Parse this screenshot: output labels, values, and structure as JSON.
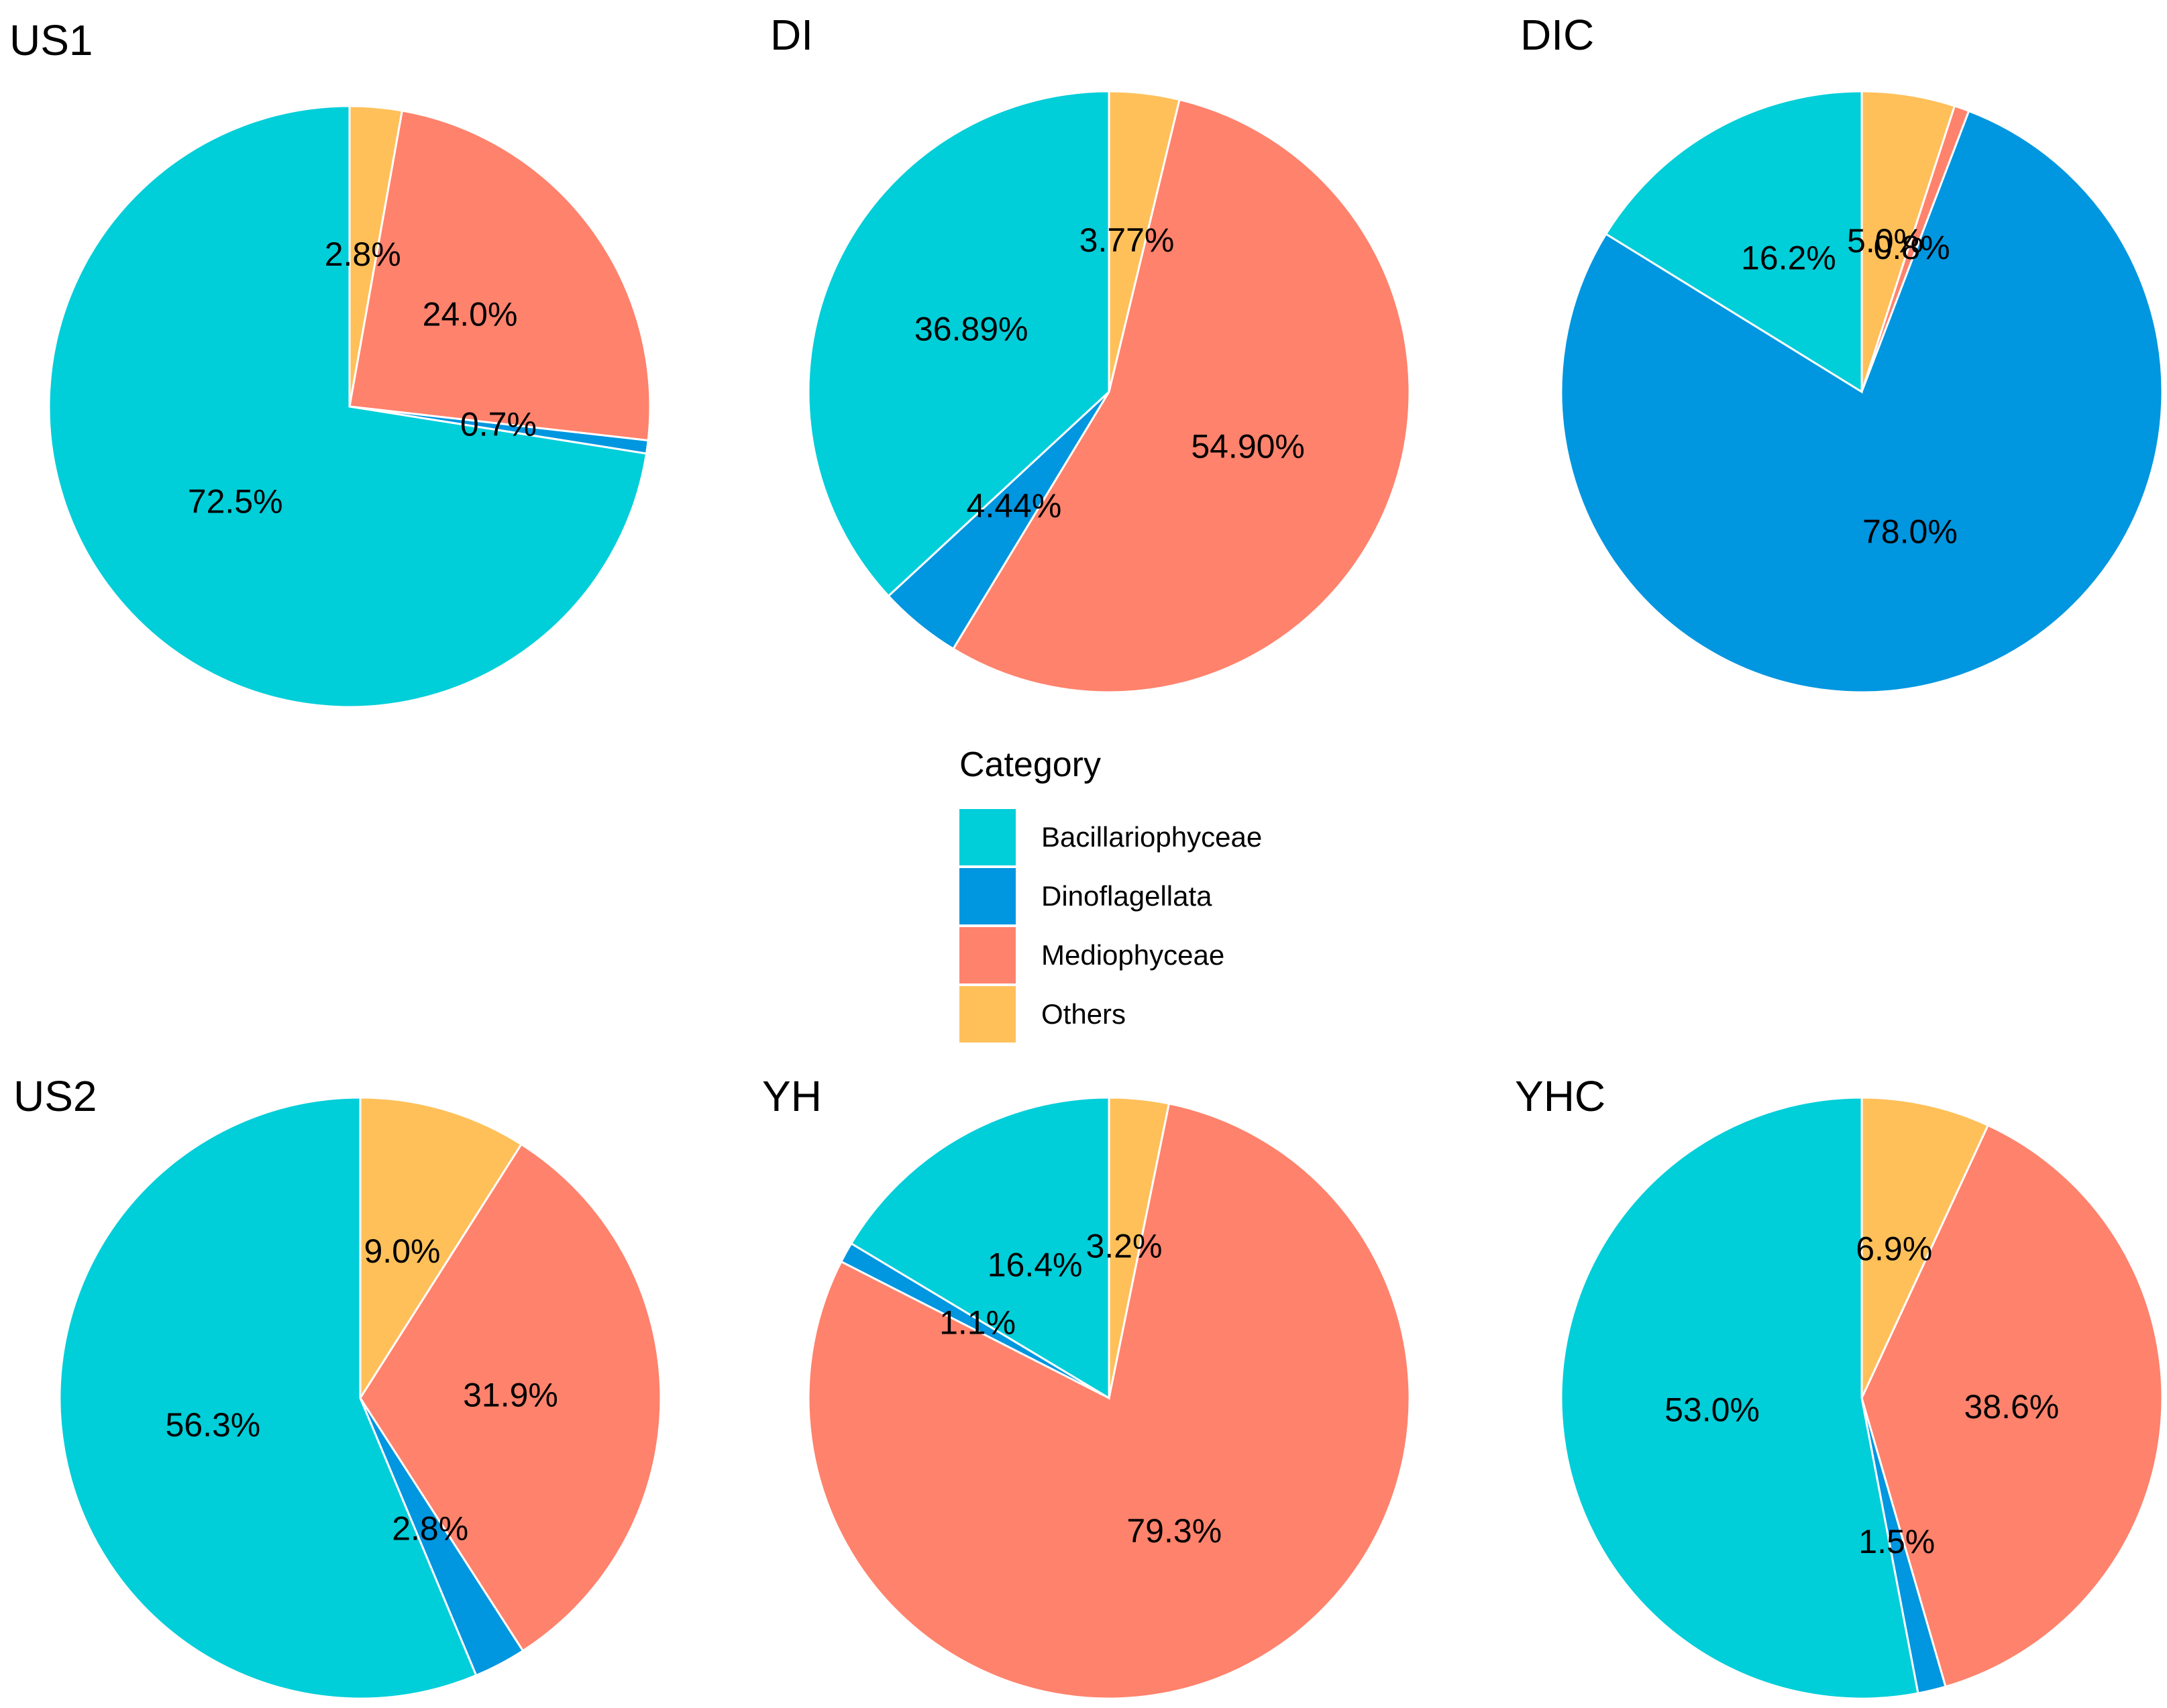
{
  "figure": {
    "legend_title": "Category",
    "categories": [
      {
        "name": "Bacillariophyceae",
        "color": "#00CED9"
      },
      {
        "name": "Dinoflagellata",
        "color": "#0096E0"
      },
      {
        "name": "Mediophyceae",
        "color": "#FF826C"
      },
      {
        "name": "Others",
        "color": "#FFC05A"
      }
    ]
  },
  "chart_data": [
    {
      "type": "pie",
      "title": "US1",
      "slices": [
        {
          "category": "Others",
          "value": 2.8,
          "label": "2.8%"
        },
        {
          "category": "Mediophyceae",
          "value": 24.0,
          "label": "24.0%"
        },
        {
          "category": "Dinoflagellata",
          "value": 0.7,
          "label": "0.7%"
        },
        {
          "category": "Bacillariophyceae",
          "value": 72.5,
          "label": "72.5%"
        }
      ]
    },
    {
      "type": "pie",
      "title": "DI",
      "slices": [
        {
          "category": "Others",
          "value": 3.77,
          "label": "3.77%"
        },
        {
          "category": "Mediophyceae",
          "value": 54.9,
          "label": "54.90%"
        },
        {
          "category": "Dinoflagellata",
          "value": 4.44,
          "label": "4.44%"
        },
        {
          "category": "Bacillariophyceae",
          "value": 36.89,
          "label": "36.89%"
        }
      ]
    },
    {
      "type": "pie",
      "title": "DIC",
      "slices": [
        {
          "category": "Others",
          "value": 5.0,
          "label": "5.0%"
        },
        {
          "category": "Mediophyceae",
          "value": 0.8,
          "label": "0.8%"
        },
        {
          "category": "Dinoflagellata",
          "value": 78.0,
          "label": "78.0%"
        },
        {
          "category": "Bacillariophyceae",
          "value": 16.2,
          "label": "16.2%"
        }
      ]
    },
    {
      "type": "pie",
      "title": "US2",
      "slices": [
        {
          "category": "Others",
          "value": 9.0,
          "label": "9.0%"
        },
        {
          "category": "Mediophyceae",
          "value": 31.9,
          "label": "31.9%"
        },
        {
          "category": "Dinoflagellata",
          "value": 2.8,
          "label": "2.8%"
        },
        {
          "category": "Bacillariophyceae",
          "value": 56.3,
          "label": "56.3%"
        }
      ]
    },
    {
      "type": "pie",
      "title": "YH",
      "slices": [
        {
          "category": "Others",
          "value": 3.2,
          "label": "3.2%"
        },
        {
          "category": "Mediophyceae",
          "value": 79.3,
          "label": "79.3%"
        },
        {
          "category": "Dinoflagellata",
          "value": 1.1,
          "label": "1.1%"
        },
        {
          "category": "Bacillariophyceae",
          "value": 16.4,
          "label": "16.4%"
        }
      ]
    },
    {
      "type": "pie",
      "title": "YHC",
      "slices": [
        {
          "category": "Others",
          "value": 6.9,
          "label": "6.9%"
        },
        {
          "category": "Mediophyceae",
          "value": 38.6,
          "label": "38.6%"
        },
        {
          "category": "Dinoflagellata",
          "value": 1.5,
          "label": "1.5%"
        },
        {
          "category": "Bacillariophyceae",
          "value": 53.0,
          "label": "53.0%"
        }
      ]
    }
  ]
}
